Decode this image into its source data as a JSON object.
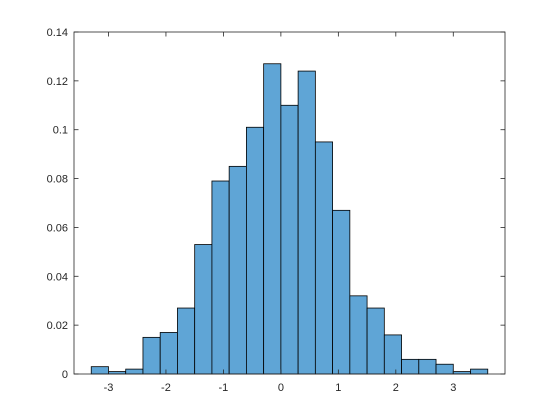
{
  "chart_data": {
    "type": "histogram",
    "bin_edges": [
      -3.3,
      -3.0,
      -2.7,
      -2.4,
      -2.1,
      -1.8,
      -1.5,
      -1.2,
      -0.9,
      -0.6,
      -0.3,
      0.0,
      0.3,
      0.6,
      0.9,
      1.2,
      1.5,
      1.8,
      2.1,
      2.4,
      2.7,
      3.0,
      3.3,
      3.6
    ],
    "values": [
      0.003,
      0.001,
      0.002,
      0.015,
      0.017,
      0.027,
      0.053,
      0.079,
      0.085,
      0.101,
      0.127,
      0.11,
      0.124,
      0.095,
      0.067,
      0.032,
      0.027,
      0.016,
      0.006,
      0.006,
      0.004,
      0.001,
      0.002
    ],
    "bar_color": "#5fa5d6",
    "edge_color": "#000000",
    "xlim": [
      -3.6,
      3.9
    ],
    "ylim": [
      0,
      0.14
    ],
    "xticks": [
      -3,
      -2,
      -1,
      0,
      1,
      2,
      3
    ],
    "xtick_labels": [
      "-3",
      "-2",
      "-1",
      "0",
      "1",
      "2",
      "3"
    ],
    "yticks": [
      0,
      0.02,
      0.04,
      0.06,
      0.08,
      0.1,
      0.12,
      0.14
    ],
    "ytick_labels": [
      "0",
      "0.02",
      "0.04",
      "0.06",
      "0.08",
      "0.1",
      "0.12",
      "0.14"
    ],
    "title": "",
    "xlabel": "",
    "ylabel": "",
    "grid": false,
    "box": true
  }
}
